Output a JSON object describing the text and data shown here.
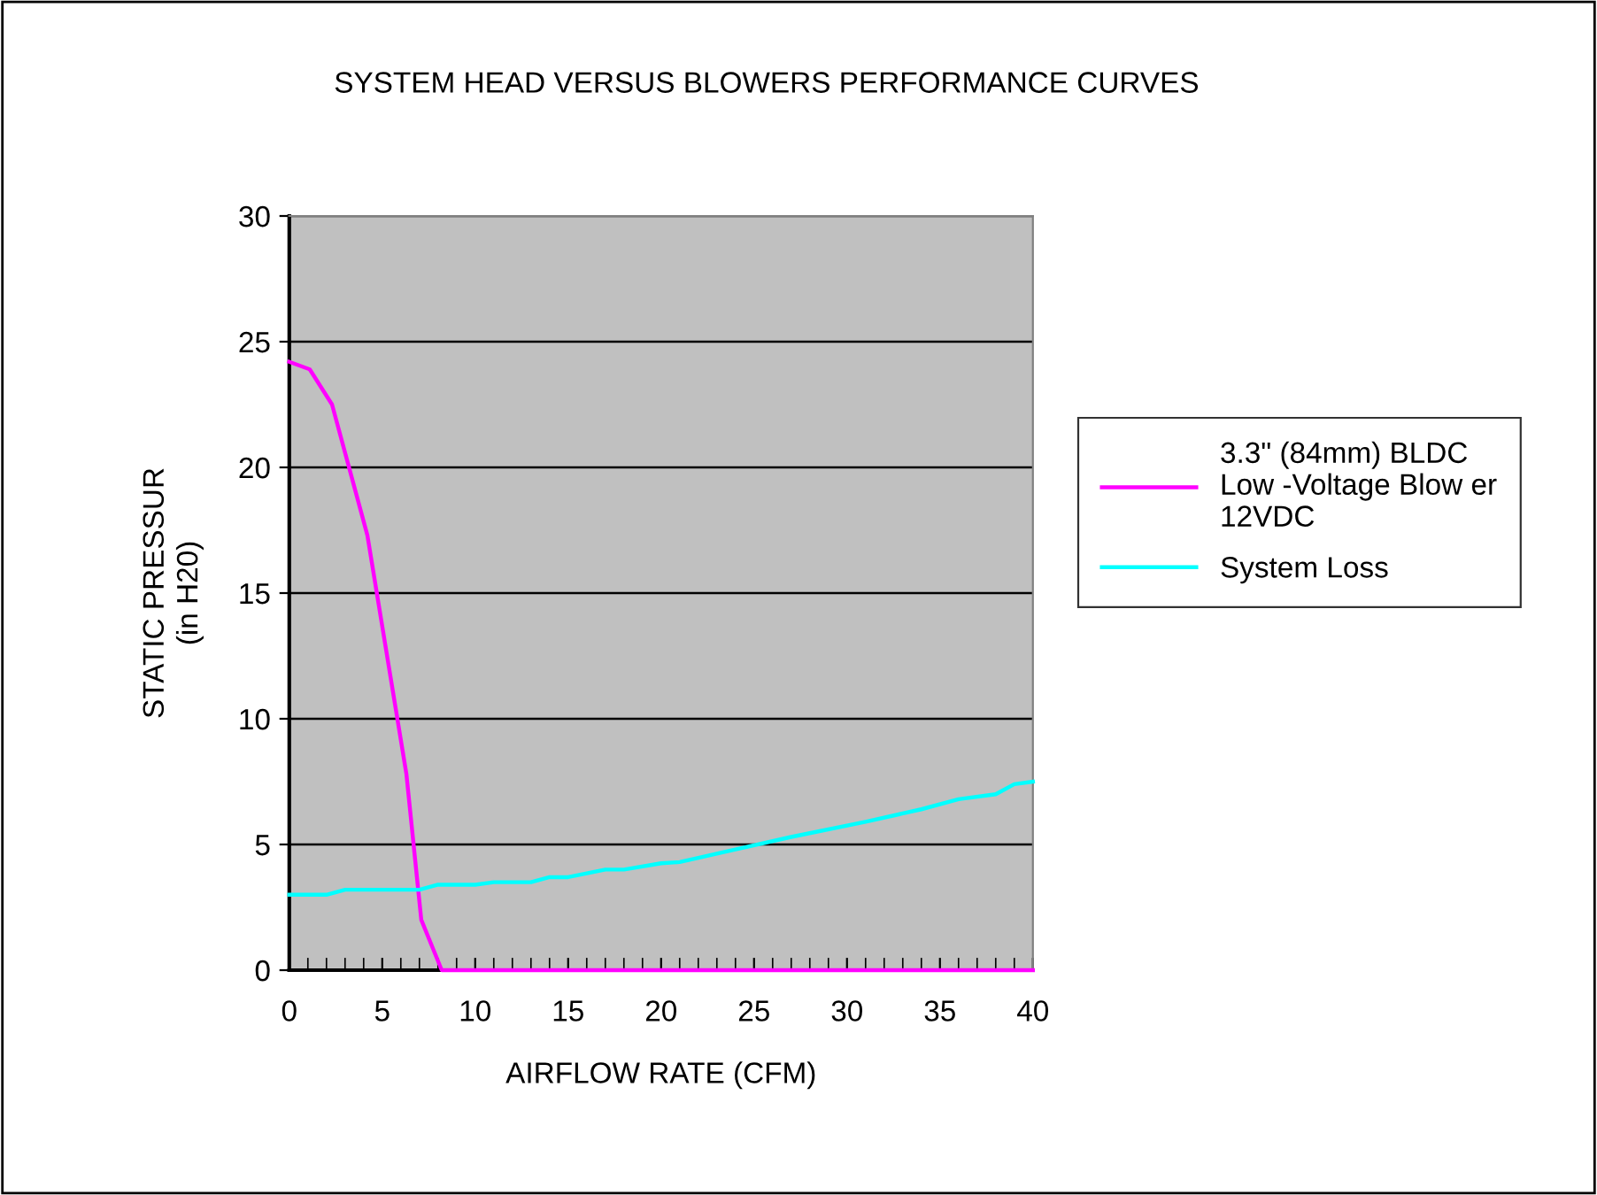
{
  "chart_data": {
    "type": "line",
    "title": "SYSTEM HEAD VERSUS BLOWERS PERFORMANCE CURVES",
    "xlabel": "AIRFLOW RATE (CFM)",
    "ylabel": "STATIC PRESSUR\n(in H20)",
    "series": [
      {
        "name": "3.3\" (84mm) BLDC\nLow -Voltage Blow er\n12VDC",
        "color": "#ff00ff",
        "x": [
          0,
          1.1,
          2.3,
          4.2,
          6.3,
          7.1,
          8.2,
          40
        ],
        "values": [
          24.2,
          23.9,
          22.5,
          17.3,
          7.8,
          2.0,
          0,
          0
        ]
      },
      {
        "name": "System Loss",
        "color": "#00ffff",
        "x": [
          0,
          2,
          3,
          7,
          8,
          10,
          11,
          13,
          14,
          15,
          17,
          18,
          20,
          21,
          24,
          27,
          31,
          34,
          36,
          38,
          39,
          40
        ],
        "values": [
          3.0,
          3.0,
          3.2,
          3.2,
          3.4,
          3.4,
          3.5,
          3.5,
          3.7,
          3.7,
          4.0,
          4.0,
          4.25,
          4.3,
          4.8,
          5.3,
          5.9,
          6.4,
          6.8,
          7.0,
          7.4,
          7.5
        ]
      }
    ],
    "xlim": [
      0,
      40
    ],
    "ylim": [
      0,
      30
    ],
    "xticks": [
      0,
      5,
      10,
      15,
      20,
      25,
      30,
      35,
      40
    ],
    "yticks": [
      0,
      5,
      10,
      15,
      20,
      25,
      30
    ],
    "grid": "y",
    "legend": "right",
    "marker": "none",
    "line_style": "solid"
  }
}
